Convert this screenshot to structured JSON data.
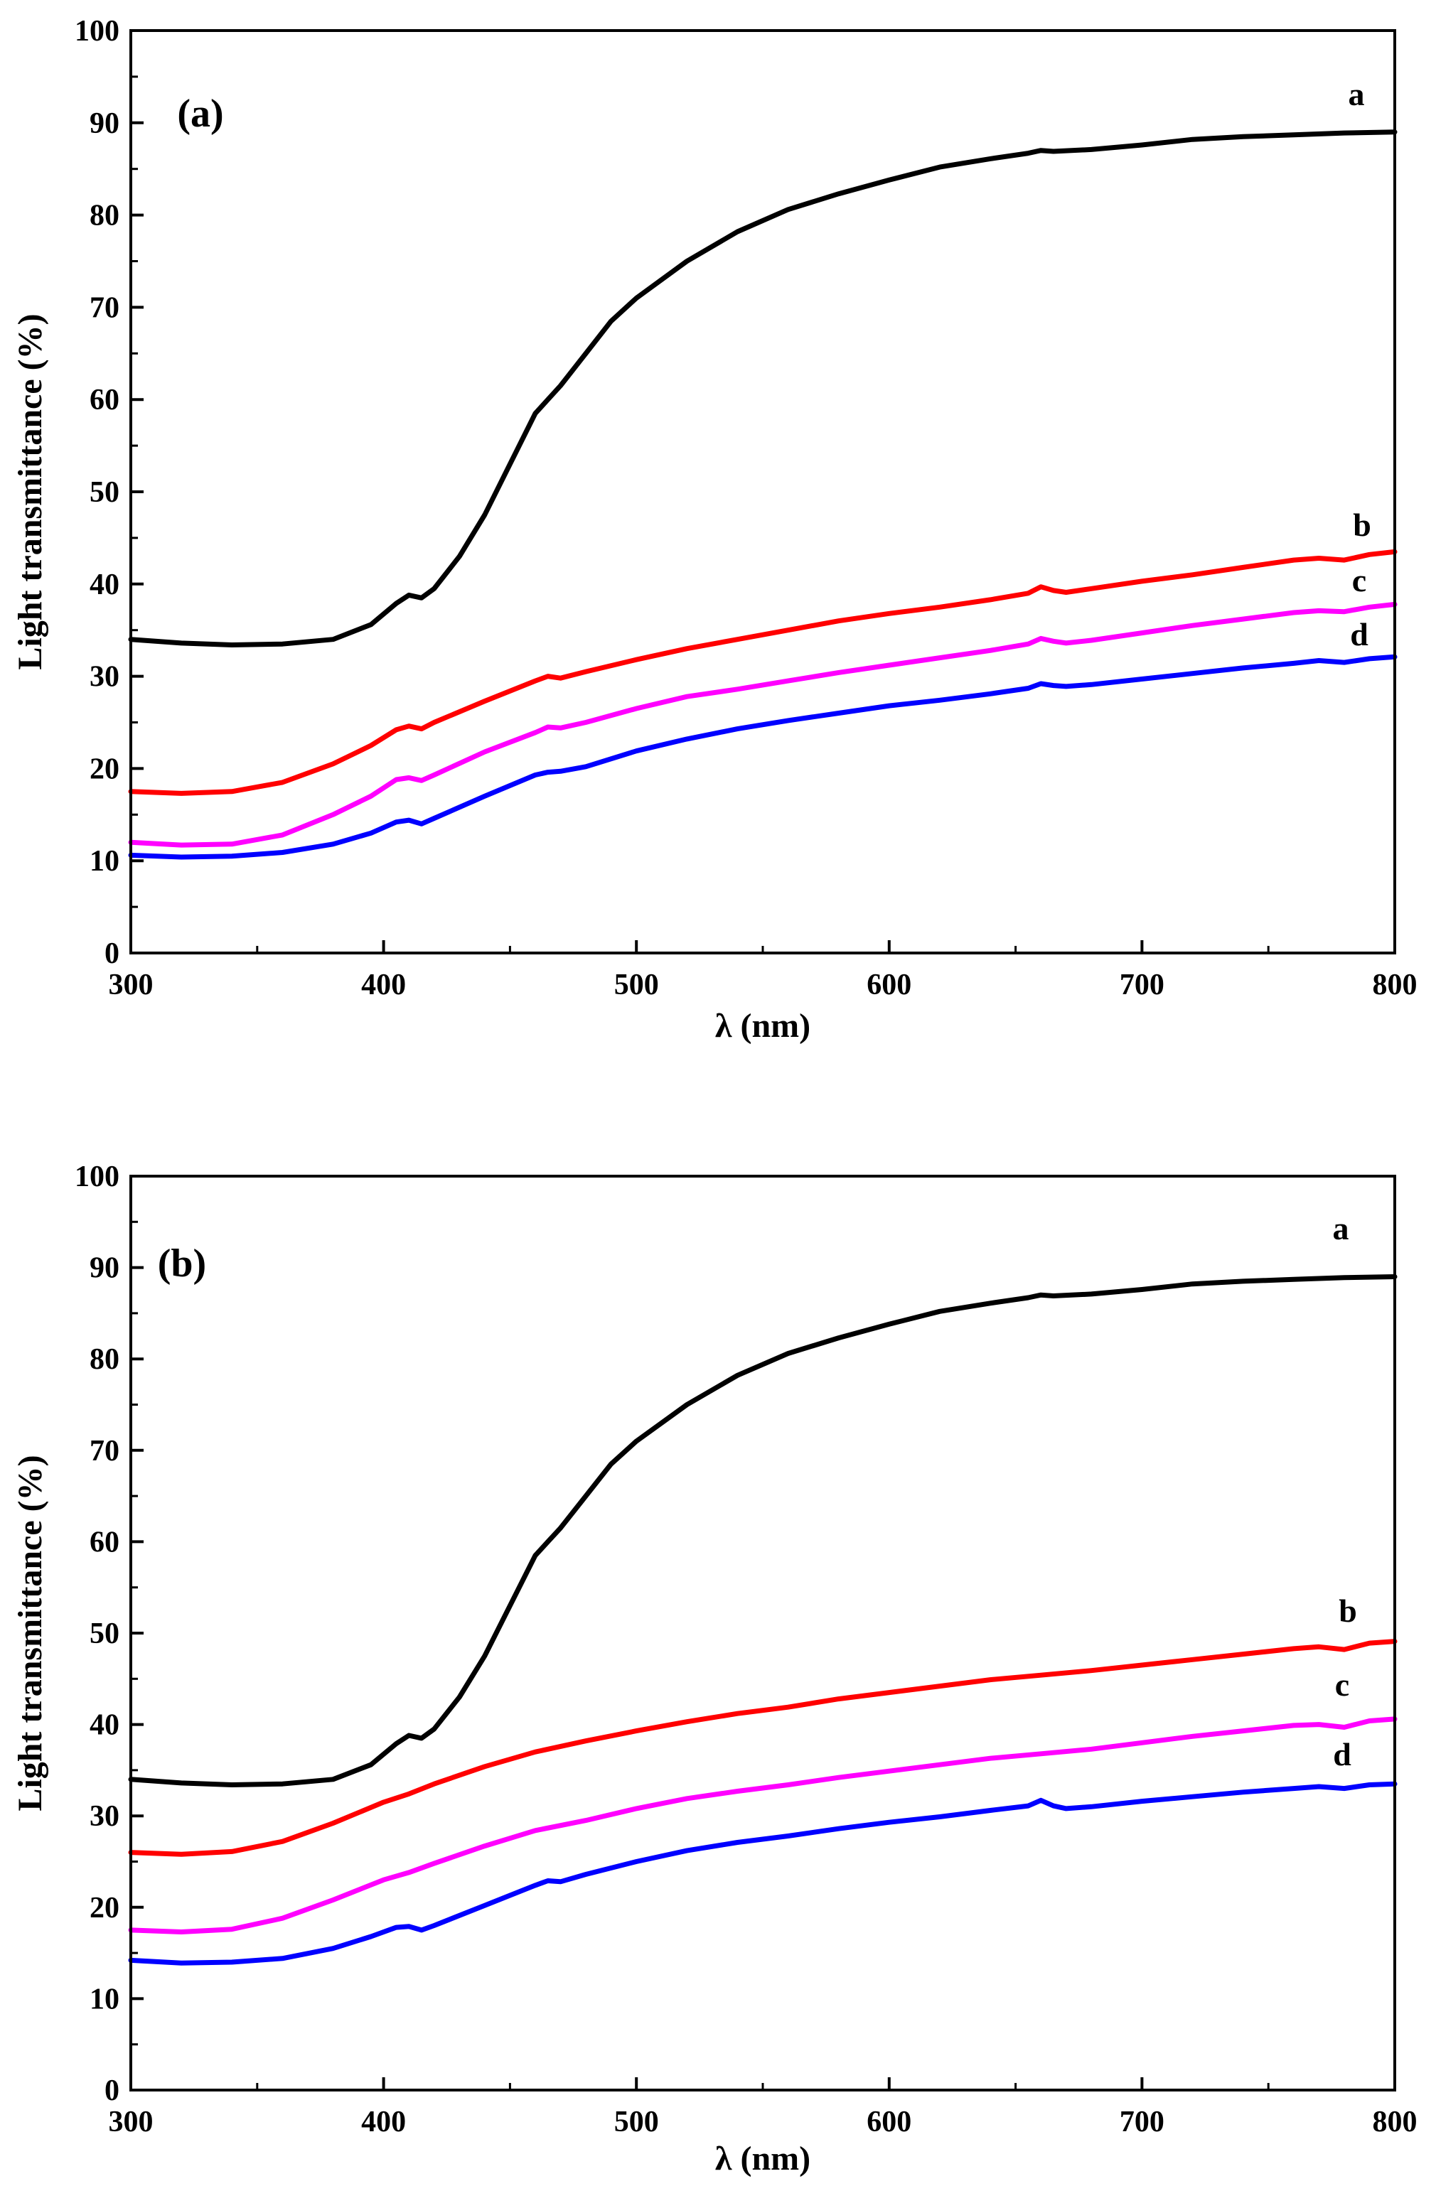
{
  "chart_data": [
    {
      "type": "line",
      "panel_label": "(a)",
      "xlabel": "λ (nm)",
      "ylabel": "Light transmittance (%)",
      "xlim": [
        300,
        800
      ],
      "ylim": [
        0,
        100
      ],
      "xticks": [
        300,
        400,
        500,
        600,
        700,
        800
      ],
      "yticks": [
        0,
        10,
        20,
        30,
        40,
        50,
        60,
        70,
        80,
        90,
        100
      ],
      "grid": false,
      "series": [
        {
          "name": "a",
          "color": "#000000",
          "x": [
            300,
            320,
            340,
            360,
            380,
            395,
            405,
            410,
            415,
            420,
            430,
            440,
            450,
            460,
            465,
            470,
            480,
            490,
            500,
            520,
            540,
            560,
            580,
            600,
            620,
            640,
            655,
            660,
            665,
            680,
            700,
            720,
            740,
            760,
            780,
            800
          ],
          "y": [
            34,
            33.6,
            33.4,
            33.5,
            34,
            35.6,
            37.9,
            38.8,
            38.5,
            39.5,
            43,
            47.5,
            53,
            58.5,
            60,
            61.5,
            65,
            68.5,
            71,
            75,
            78.2,
            80.6,
            82.3,
            83.8,
            85.2,
            86.1,
            86.7,
            87,
            86.9,
            87.1,
            87.6,
            88.2,
            88.5,
            88.7,
            88.9,
            89
          ]
        },
        {
          "name": "b",
          "color": "#ff0000",
          "x": [
            300,
            320,
            340,
            360,
            380,
            395,
            405,
            410,
            415,
            420,
            440,
            460,
            465,
            470,
            480,
            500,
            520,
            540,
            560,
            580,
            600,
            620,
            640,
            655,
            660,
            665,
            670,
            680,
            700,
            720,
            740,
            760,
            770,
            780,
            790,
            800
          ],
          "y": [
            17.5,
            17.3,
            17.5,
            18.5,
            20.5,
            22.5,
            24.2,
            24.6,
            24.3,
            25,
            27.3,
            29.5,
            30,
            29.8,
            30.5,
            31.8,
            33,
            34,
            35,
            36,
            36.8,
            37.5,
            38.3,
            39,
            39.7,
            39.3,
            39.1,
            39.5,
            40.3,
            41,
            41.8,
            42.6,
            42.8,
            42.6,
            43.2,
            43.5
          ]
        },
        {
          "name": "c",
          "color": "#ff00ff",
          "x": [
            300,
            320,
            340,
            360,
            380,
            395,
            405,
            410,
            415,
            420,
            440,
            460,
            465,
            470,
            480,
            500,
            520,
            540,
            560,
            580,
            600,
            620,
            640,
            655,
            660,
            665,
            670,
            680,
            700,
            720,
            740,
            760,
            770,
            780,
            790,
            800
          ],
          "y": [
            12,
            11.7,
            11.8,
            12.8,
            15,
            17,
            18.8,
            19,
            18.7,
            19.3,
            21.8,
            23.9,
            24.5,
            24.4,
            25,
            26.5,
            27.8,
            28.6,
            29.5,
            30.4,
            31.2,
            32,
            32.8,
            33.5,
            34.1,
            33.8,
            33.6,
            33.9,
            34.7,
            35.5,
            36.2,
            36.9,
            37.1,
            37,
            37.5,
            37.8
          ]
        },
        {
          "name": "d",
          "color": "#0000ff",
          "x": [
            300,
            320,
            340,
            360,
            380,
            395,
            405,
            410,
            415,
            420,
            440,
            460,
            465,
            470,
            480,
            500,
            520,
            540,
            560,
            580,
            600,
            620,
            640,
            655,
            660,
            665,
            670,
            680,
            700,
            720,
            740,
            760,
            770,
            780,
            790,
            800
          ],
          "y": [
            10.6,
            10.4,
            10.5,
            10.9,
            11.8,
            13,
            14.2,
            14.4,
            14,
            14.6,
            17,
            19.3,
            19.6,
            19.7,
            20.2,
            21.9,
            23.2,
            24.3,
            25.2,
            26,
            26.8,
            27.4,
            28.1,
            28.7,
            29.2,
            29,
            28.9,
            29.1,
            29.7,
            30.3,
            30.9,
            31.4,
            31.7,
            31.5,
            31.9,
            32.1
          ]
        }
      ]
    },
    {
      "type": "line",
      "panel_label": "(b)",
      "xlabel": "λ (nm)",
      "ylabel": "Light transmittance (%)",
      "xlim": [
        300,
        800
      ],
      "ylim": [
        0,
        100
      ],
      "xticks": [
        300,
        400,
        500,
        600,
        700,
        800
      ],
      "yticks": [
        0,
        10,
        20,
        30,
        40,
        50,
        60,
        70,
        80,
        90,
        100
      ],
      "grid": false,
      "series": [
        {
          "name": "a",
          "color": "#000000",
          "x": [
            300,
            320,
            340,
            360,
            380,
            395,
            405,
            410,
            415,
            420,
            430,
            440,
            450,
            460,
            465,
            470,
            480,
            490,
            500,
            520,
            540,
            560,
            580,
            600,
            620,
            640,
            655,
            660,
            665,
            680,
            700,
            720,
            740,
            760,
            780,
            800
          ],
          "y": [
            34,
            33.6,
            33.4,
            33.5,
            34,
            35.6,
            37.9,
            38.8,
            38.5,
            39.5,
            43,
            47.5,
            53,
            58.5,
            60,
            61.5,
            65,
            68.5,
            71,
            75,
            78.2,
            80.6,
            82.3,
            83.8,
            85.2,
            86.1,
            86.7,
            87,
            86.9,
            87.1,
            87.6,
            88.2,
            88.5,
            88.7,
            88.9,
            89
          ]
        },
        {
          "name": "b",
          "color": "#ff0000",
          "x": [
            300,
            320,
            340,
            360,
            380,
            400,
            410,
            420,
            440,
            460,
            480,
            500,
            520,
            540,
            560,
            580,
            600,
            620,
            640,
            660,
            680,
            700,
            720,
            740,
            760,
            770,
            780,
            790,
            800
          ],
          "y": [
            26,
            25.8,
            26.1,
            27.2,
            29.2,
            31.5,
            32.4,
            33.5,
            35.4,
            37,
            38.2,
            39.3,
            40.3,
            41.2,
            41.9,
            42.8,
            43.5,
            44.2,
            44.9,
            45.4,
            45.9,
            46.5,
            47.1,
            47.7,
            48.3,
            48.5,
            48.2,
            48.9,
            49.1
          ]
        },
        {
          "name": "c",
          "color": "#ff00ff",
          "x": [
            300,
            320,
            340,
            360,
            380,
            400,
            410,
            420,
            440,
            460,
            480,
            500,
            520,
            540,
            560,
            580,
            600,
            620,
            640,
            660,
            680,
            700,
            720,
            740,
            760,
            770,
            780,
            790,
            800
          ],
          "y": [
            17.5,
            17.3,
            17.6,
            18.8,
            20.8,
            23,
            23.8,
            24.8,
            26.7,
            28.4,
            29.5,
            30.8,
            31.9,
            32.7,
            33.4,
            34.2,
            34.9,
            35.6,
            36.3,
            36.8,
            37.3,
            38,
            38.7,
            39.3,
            39.9,
            40,
            39.7,
            40.4,
            40.6
          ]
        },
        {
          "name": "d",
          "color": "#0000ff",
          "x": [
            300,
            320,
            340,
            360,
            380,
            395,
            405,
            410,
            415,
            420,
            440,
            460,
            465,
            470,
            480,
            500,
            520,
            540,
            560,
            580,
            600,
            620,
            640,
            655,
            660,
            665,
            670,
            680,
            700,
            720,
            740,
            760,
            770,
            780,
            790,
            800
          ],
          "y": [
            14.2,
            13.9,
            14,
            14.4,
            15.5,
            16.8,
            17.8,
            17.9,
            17.5,
            18,
            20.2,
            22.4,
            22.9,
            22.8,
            23.6,
            25,
            26.2,
            27.1,
            27.8,
            28.6,
            29.3,
            29.9,
            30.6,
            31.1,
            31.7,
            31.1,
            30.8,
            31,
            31.6,
            32.1,
            32.6,
            33,
            33.2,
            33,
            33.4,
            33.5
          ]
        }
      ]
    }
  ]
}
